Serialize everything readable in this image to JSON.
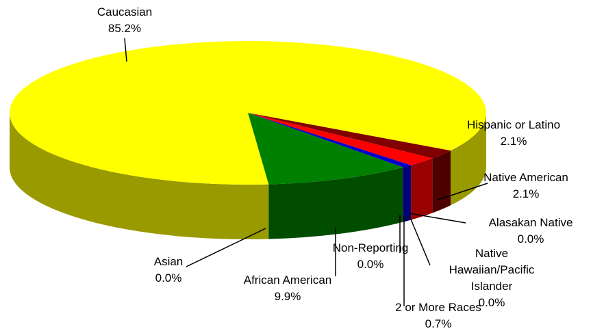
{
  "chart_data": {
    "type": "pie",
    "three_d": true,
    "categories": [
      "Caucasian",
      "Hispanic or Latino",
      "Native American",
      "Alasakan Native",
      "Native Hawaiian/Pacific Islander",
      "2 or More Races",
      "Non-Reporting",
      "Asian",
      "African American"
    ],
    "values": [
      85.2,
      2.1,
      2.1,
      0.0,
      0.0,
      0.7,
      0.0,
      0.0,
      9.9
    ],
    "value_labels": [
      "85.2%",
      "2.1%",
      "2.1%",
      "0.0%",
      "0.0%",
      "0.7%",
      "0.0%",
      "0.0%",
      "9.9%"
    ],
    "colors": [
      "#ffff00",
      "#800000",
      "#ff0000",
      "#993366",
      "#ff99cc",
      "#0000cc",
      "#ffcc00",
      "#00ccff",
      "#008000"
    ]
  }
}
